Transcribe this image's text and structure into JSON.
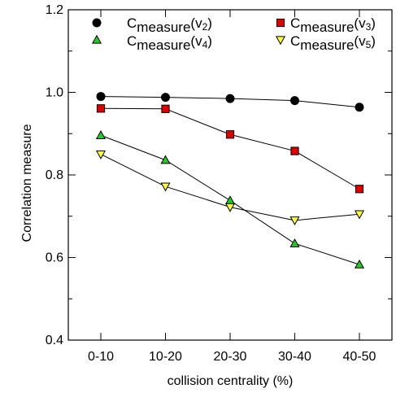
{
  "chart_data": {
    "type": "line",
    "xlabel": "collision centrality (%)",
    "ylabel": "Correlation measure",
    "categories": [
      "0-10",
      "10-20",
      "20-30",
      "30-40",
      "40-50"
    ],
    "ylim": [
      0.4,
      1.2
    ],
    "yticks": [
      "0.4",
      "0.6",
      "0.8",
      "1.0",
      "1.2"
    ],
    "grid": false,
    "legend_position": "top",
    "series": [
      {
        "name_main": "C",
        "name_sub": "measure",
        "name_tail": "(v",
        "name_index": "2",
        "name_close": ")",
        "marker": "circle",
        "color": "#000000",
        "values": [
          0.99,
          0.988,
          0.985,
          0.98,
          0.964
        ]
      },
      {
        "name_main": "C",
        "name_sub": "measure",
        "name_tail": "(v",
        "name_index": "3",
        "name_close": ")",
        "marker": "square",
        "color": "#e00000",
        "values": [
          0.961,
          0.96,
          0.898,
          0.858,
          0.766
        ]
      },
      {
        "name_main": "C",
        "name_sub": "measure",
        "name_tail": "(v",
        "name_index": "4",
        "name_close": ")",
        "marker": "triangle-up",
        "color": "#22cc22",
        "values": [
          0.896,
          0.836,
          0.738,
          0.634,
          0.583
        ]
      },
      {
        "name_main": "C",
        "name_sub": "measure",
        "name_tail": "(v",
        "name_index": "5",
        "name_close": ")",
        "marker": "triangle-down",
        "color": "#ffff33",
        "values": [
          0.85,
          0.772,
          0.722,
          0.69,
          0.705
        ]
      }
    ]
  }
}
